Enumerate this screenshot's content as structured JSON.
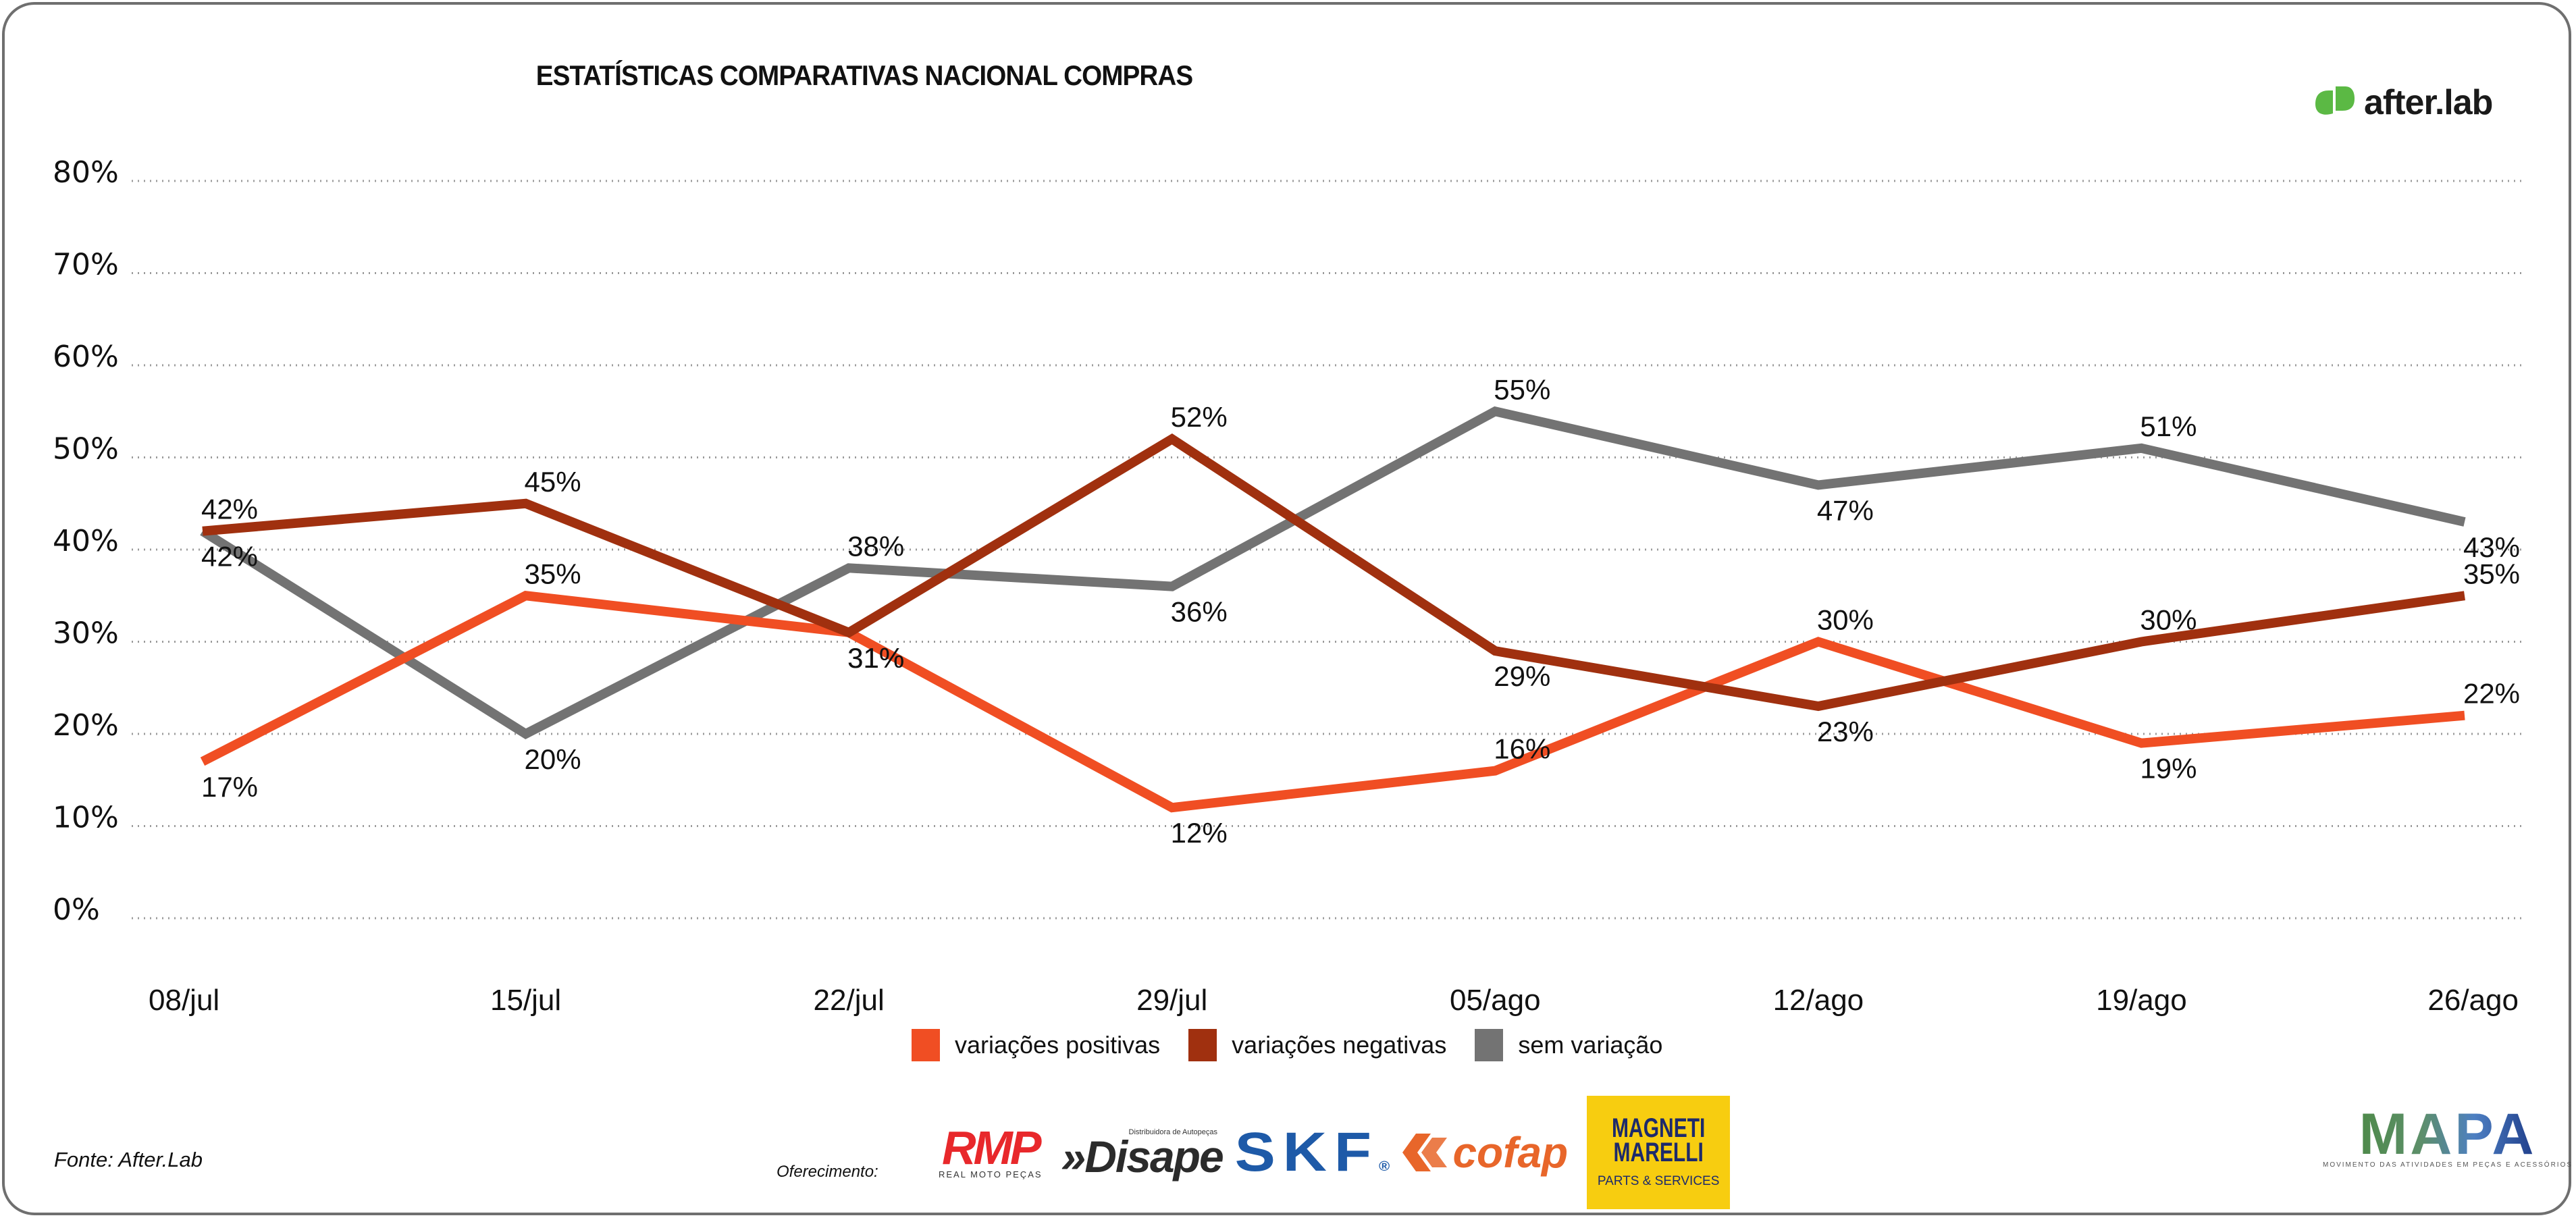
{
  "brand": {
    "name": "after.lab",
    "color": "#5bb944",
    "icon": "after-lab-leaf-icon"
  },
  "footer": {
    "source": "Fonte: After.Lab",
    "offer_label": "Oferecimento:",
    "sponsors": {
      "rmp": {
        "mark": "RMP",
        "sub": "REAL MOTO PEÇAS"
      },
      "disape": {
        "mark": "»Disape",
        "sub": "Distribuidora de Autopeças"
      },
      "skf": {
        "mark": "SKF",
        "reg": "®"
      },
      "cofap": {
        "mark": "cofap"
      },
      "magneti": {
        "mark_line1": "MAGNETI",
        "mark_line2": "MARELLI",
        "sub": "PARTS & SERVICES"
      }
    },
    "mapa": {
      "mark": "MAPA",
      "sub": "MOVIMENTO DAS ATIVIDADES EM PEÇAS E ACESSÓRIOS"
    }
  },
  "chart_data": {
    "type": "line",
    "title": "ESTATÍSTICAS COMPARATIVAS NACIONAL COMPRAS",
    "xlabel": "",
    "ylabel": "",
    "categories": [
      "08/jul",
      "15/jul",
      "22/jul",
      "29/jul",
      "05/ago",
      "12/ago",
      "19/ago",
      "26/ago"
    ],
    "ylim": [
      0,
      80
    ],
    "yticks": [
      0,
      10,
      20,
      30,
      40,
      50,
      60,
      70,
      80
    ],
    "ytick_labels": [
      "0%",
      "10%",
      "20%",
      "30%",
      "40%",
      "50%",
      "60%",
      "70%",
      "80%"
    ],
    "grid": "horizontal-dotted",
    "legend_position": "bottom-center",
    "series": [
      {
        "name": "variações positivas",
        "color": "#f04e23",
        "values": [
          17,
          35,
          31,
          12,
          16,
          30,
          19,
          22
        ]
      },
      {
        "name": "variações negativas",
        "color": "#a0300f",
        "values": [
          42,
          45,
          31,
          52,
          29,
          23,
          30,
          35
        ]
      },
      {
        "name": "sem variação",
        "color": "#737373",
        "values": [
          42,
          20,
          38,
          36,
          55,
          47,
          51,
          43
        ]
      }
    ]
  }
}
